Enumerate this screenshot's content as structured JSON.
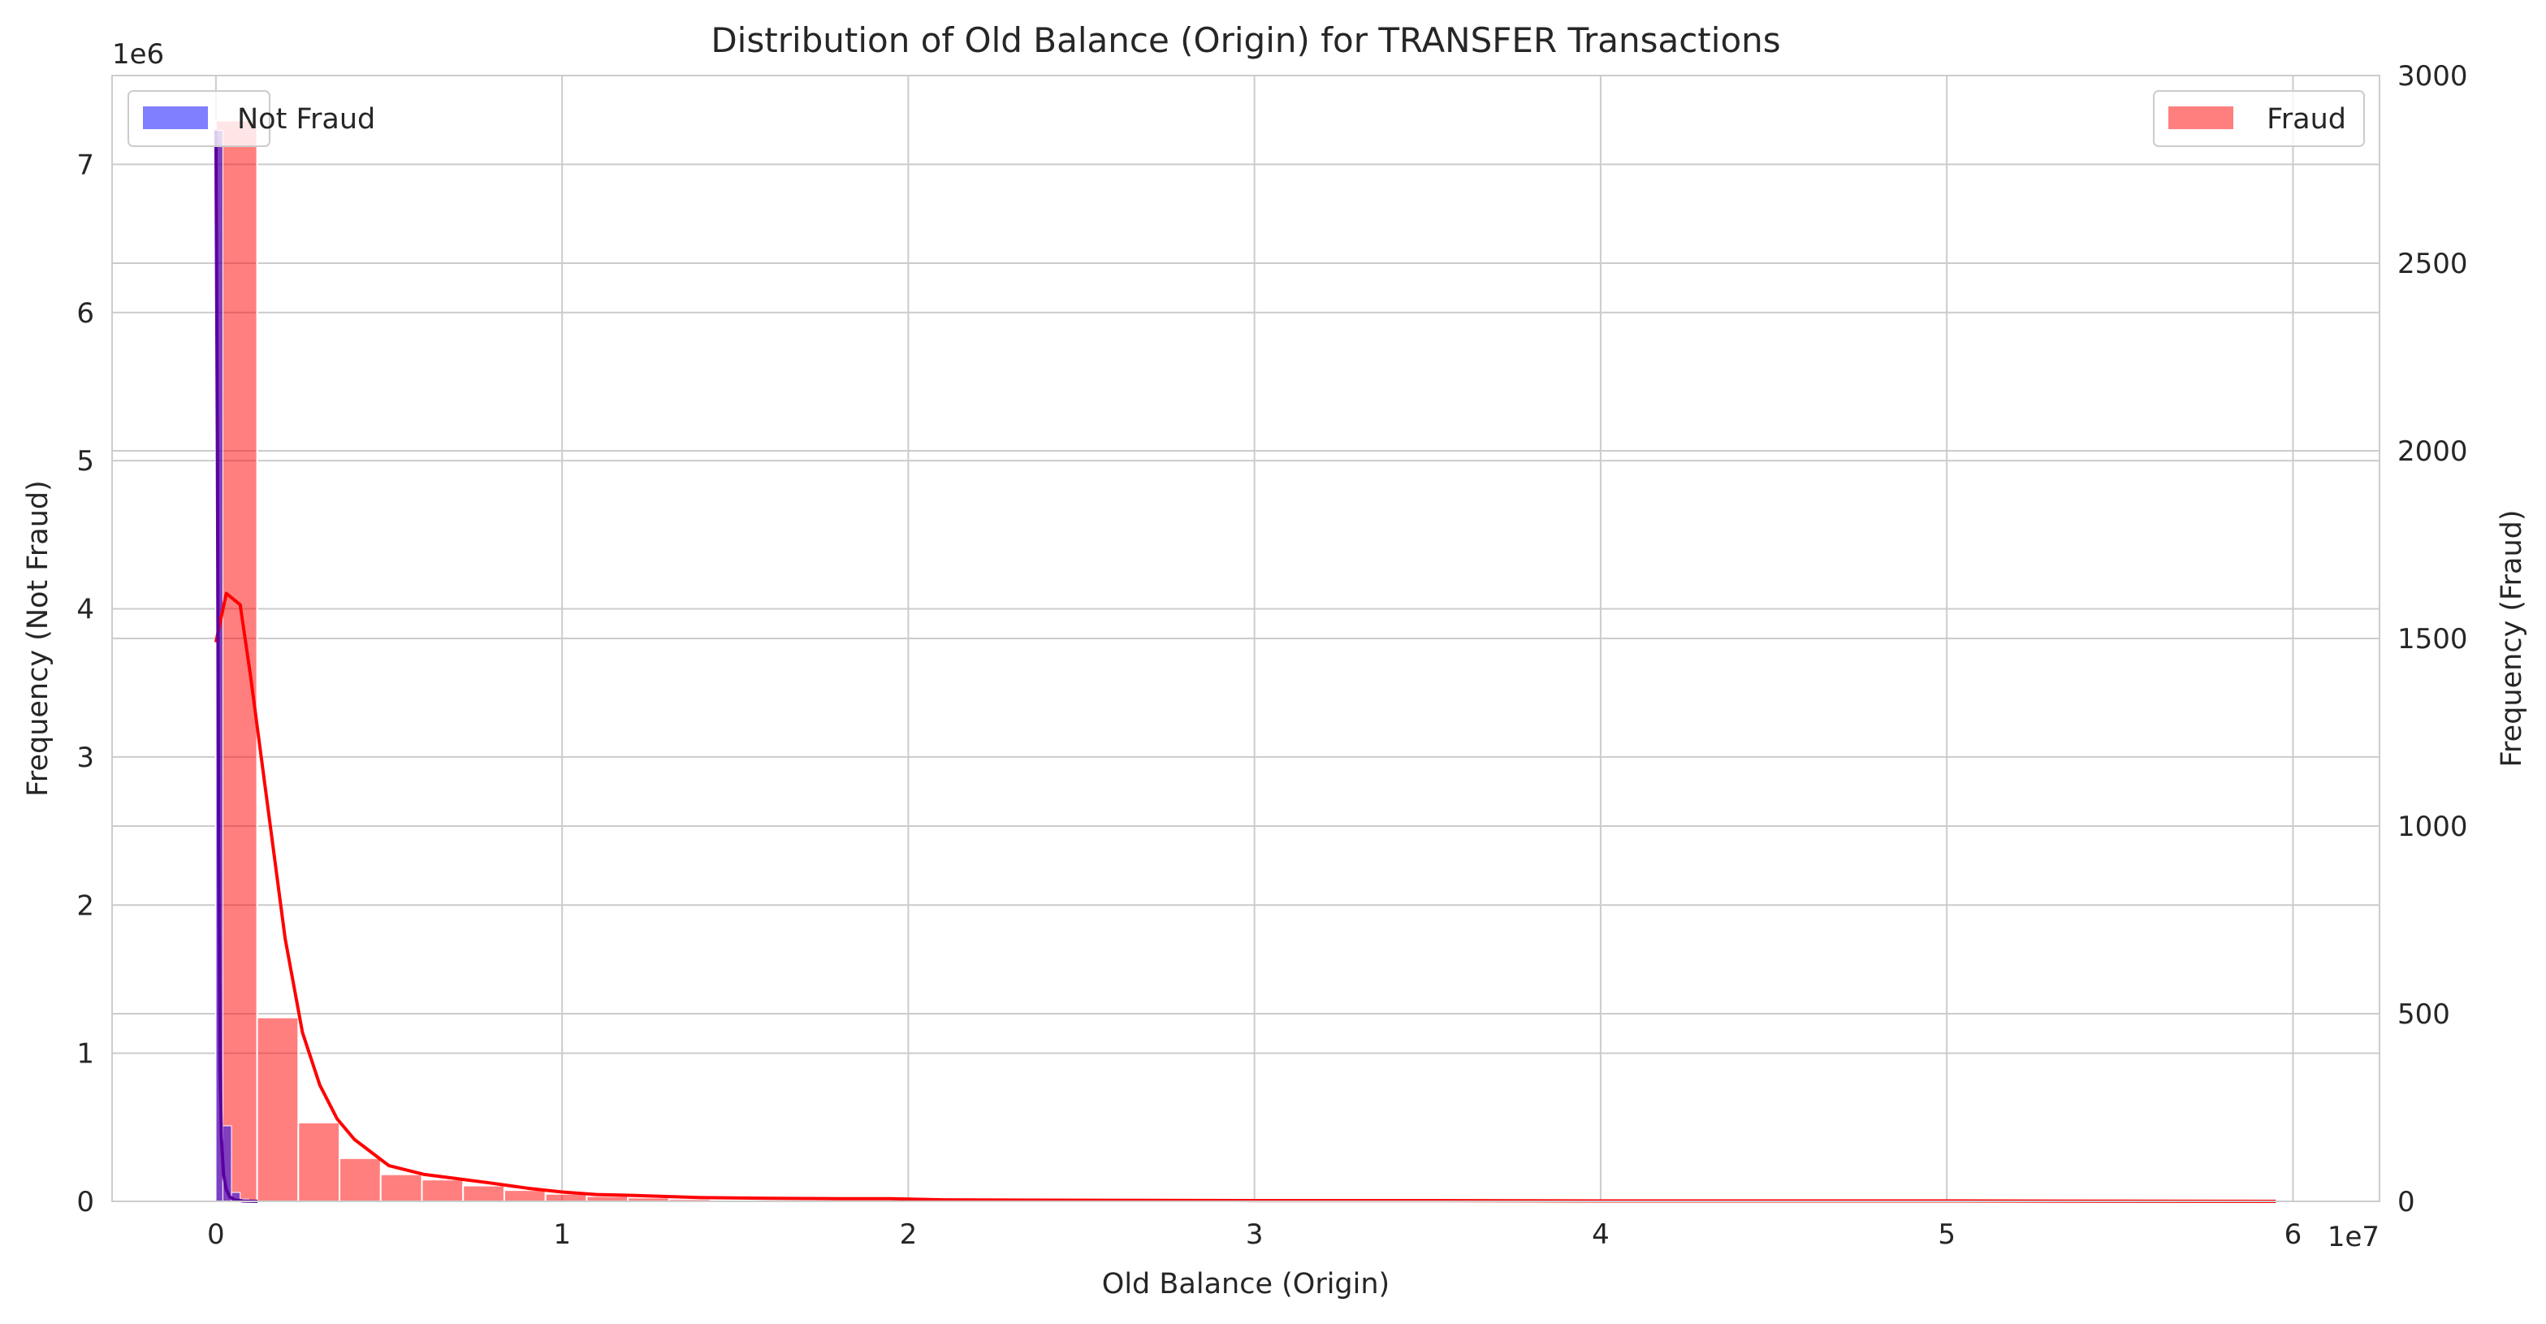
{
  "chart_data": {
    "type": "bar",
    "title": "Distribution of Old Balance (Origin) for TRANSFER Transactions",
    "xlabel": "Old Balance (Origin)",
    "ylabel_left": "Frequency (Not Fraud)",
    "ylabel_right": "Frequency (Fraud)",
    "x_offset_text": "1e7",
    "y_left_offset_text": "1e6",
    "xlim": [
      -3000000,
      62500000
    ],
    "ylim_left": [
      0,
      7600000
    ],
    "ylim_right": [
      0,
      3000
    ],
    "x_ticks": [
      {
        "value": 0,
        "label": "0"
      },
      {
        "value": 10000000,
        "label": "1"
      },
      {
        "value": 20000000,
        "label": "2"
      },
      {
        "value": 30000000,
        "label": "3"
      },
      {
        "value": 40000000,
        "label": "4"
      },
      {
        "value": 50000000,
        "label": "5"
      },
      {
        "value": 60000000,
        "label": "6"
      }
    ],
    "y_left_ticks": [
      {
        "value": 0,
        "label": "0"
      },
      {
        "value": 1000000,
        "label": "1"
      },
      {
        "value": 2000000,
        "label": "2"
      },
      {
        "value": 3000000,
        "label": "3"
      },
      {
        "value": 4000000,
        "label": "4"
      },
      {
        "value": 5000000,
        "label": "5"
      },
      {
        "value": 6000000,
        "label": "6"
      },
      {
        "value": 7000000,
        "label": "7"
      }
    ],
    "y_right_ticks": [
      {
        "value": 0,
        "label": "0"
      },
      {
        "value": 500,
        "label": "500"
      },
      {
        "value": 1000,
        "label": "1000"
      },
      {
        "value": 1500,
        "label": "1500"
      },
      {
        "value": 2000,
        "label": "2000"
      },
      {
        "value": 2500,
        "label": "2500"
      },
      {
        "value": 3000,
        "label": "3000"
      }
    ],
    "grid": true,
    "series": [
      {
        "name": "Not Fraud",
        "axis": "left",
        "color": "#0000ff",
        "alpha": 0.5,
        "kde_color": "#5a00a0",
        "bins": [
          {
            "x0": 0,
            "x1": 200000,
            "value": 7230000
          },
          {
            "x0": 200000,
            "x1": 450000,
            "value": 510000
          },
          {
            "x0": 450000,
            "x1": 700000,
            "value": 60000
          },
          {
            "x0": 700000,
            "x1": 950000,
            "value": 15000
          }
        ],
        "kde": [
          [
            0,
            7230000
          ],
          [
            40000,
            5200000
          ],
          [
            80000,
            2400000
          ],
          [
            120000,
            900000
          ],
          [
            160000,
            420000
          ],
          [
            220000,
            180000
          ],
          [
            300000,
            80000
          ],
          [
            400000,
            30000
          ],
          [
            550000,
            10000
          ],
          [
            800000,
            2000
          ],
          [
            1200000,
            0
          ]
        ]
      },
      {
        "name": "Fraud",
        "axis": "right",
        "color": "#ff0000",
        "alpha": 0.5,
        "kde_color": "#ff0000",
        "bins": [
          {
            "x0": 0,
            "x1": 1190000,
            "value": 2880
          },
          {
            "x0": 1190000,
            "x1": 2380000,
            "value": 490
          },
          {
            "x0": 2380000,
            "x1": 3570000,
            "value": 210
          },
          {
            "x0": 3570000,
            "x1": 4760000,
            "value": 115
          },
          {
            "x0": 4760000,
            "x1": 5950000,
            "value": 72
          },
          {
            "x0": 5950000,
            "x1": 7140000,
            "value": 58
          },
          {
            "x0": 7140000,
            "x1": 8330000,
            "value": 42
          },
          {
            "x0": 8330000,
            "x1": 9520000,
            "value": 30
          },
          {
            "x0": 9520000,
            "x1": 10710000,
            "value": 20
          },
          {
            "x0": 10710000,
            "x1": 11900000,
            "value": 14
          },
          {
            "x0": 11900000,
            "x1": 13090000,
            "value": 10
          },
          {
            "x0": 13090000,
            "x1": 14280000,
            "value": 6
          },
          {
            "x0": 14280000,
            "x1": 15470000,
            "value": 4
          },
          {
            "x0": 15470000,
            "x1": 16660000,
            "value": 3
          },
          {
            "x0": 16660000,
            "x1": 17850000,
            "value": 3
          },
          {
            "x0": 17850000,
            "x1": 19040000,
            "value": 2
          },
          {
            "x0": 19040000,
            "x1": 20230000,
            "value": 2
          }
        ],
        "kde": [
          [
            0,
            1490
          ],
          [
            300000,
            1620
          ],
          [
            700000,
            1590
          ],
          [
            1000000,
            1400
          ],
          [
            1500000,
            1050
          ],
          [
            2000000,
            700
          ],
          [
            2500000,
            450
          ],
          [
            3000000,
            310
          ],
          [
            3500000,
            220
          ],
          [
            4000000,
            165
          ],
          [
            5000000,
            95
          ],
          [
            6000000,
            72
          ],
          [
            7000000,
            60
          ],
          [
            8000000,
            48
          ],
          [
            9000000,
            35
          ],
          [
            10000000,
            25
          ],
          [
            11000000,
            18
          ],
          [
            12000000,
            16
          ],
          [
            13000000,
            13
          ],
          [
            14000000,
            10
          ],
          [
            16000000,
            8
          ],
          [
            18000000,
            7
          ],
          [
            19500000,
            7
          ],
          [
            21000000,
            4
          ],
          [
            25000000,
            3
          ],
          [
            30000000,
            2
          ],
          [
            35000000,
            2
          ],
          [
            40000000,
            1
          ],
          [
            50000000,
            1
          ],
          [
            59500000,
            0
          ]
        ]
      }
    ],
    "legends": [
      {
        "series": "Not Fraud",
        "placement": "upper left"
      },
      {
        "series": "Fraud",
        "placement": "upper right"
      }
    ]
  }
}
